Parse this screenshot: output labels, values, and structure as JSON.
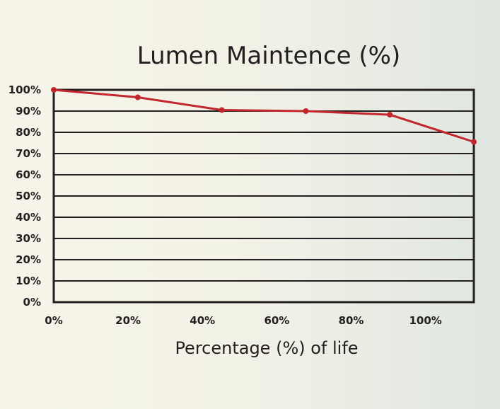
{
  "chart_data": {
    "type": "line",
    "title": "Lumen Maintence (%)",
    "xlabel": "Percentage (%) of life",
    "ylabel": "",
    "x_ticks": [
      "0%",
      "20%",
      "40%",
      "60%",
      "80%",
      "100%"
    ],
    "y_ticks": [
      "0%",
      "10%",
      "20%",
      "30%",
      "40%",
      "50%",
      "60%",
      "70%",
      "80%",
      "90%",
      "100%"
    ],
    "xlim": [
      0,
      113
    ],
    "ylim": [
      0,
      100
    ],
    "grid": true,
    "series": [
      {
        "color": "#c1272d",
        "points": [
          {
            "x": 0,
            "y": 100
          },
          {
            "x": 22.6,
            "y": 96.5
          },
          {
            "x": 45.2,
            "y": 90.5
          },
          {
            "x": 67.8,
            "y": 90
          },
          {
            "x": 90.4,
            "y": 88.3
          },
          {
            "x": 113,
            "y": 75.5
          }
        ]
      }
    ]
  }
}
